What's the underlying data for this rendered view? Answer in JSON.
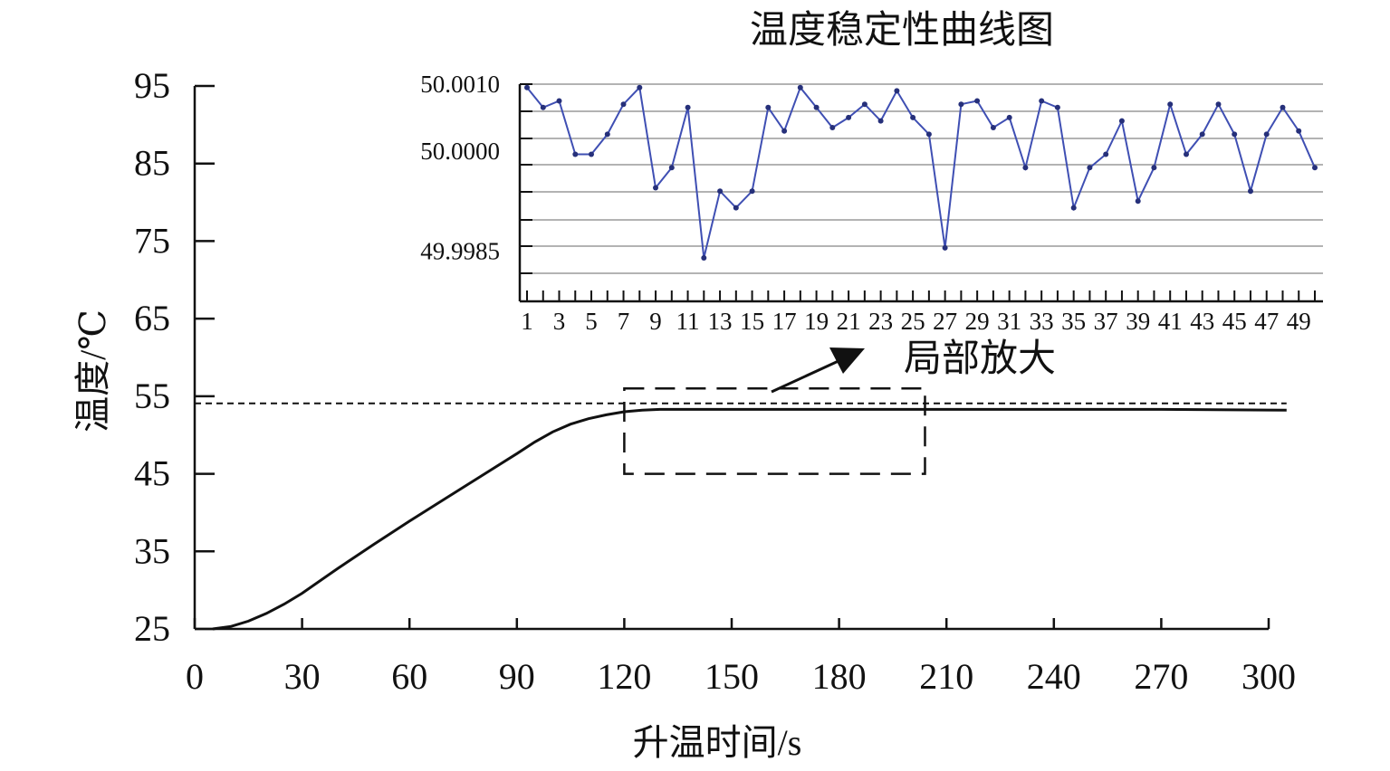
{
  "chart_data": [
    {
      "type": "line",
      "xlabel": "升温时间/s",
      "ylabel": "温度/℃",
      "xlim": [
        0,
        300
      ],
      "ylim": [
        25,
        95
      ],
      "x_ticks": [
        "0",
        "30",
        "60",
        "90",
        "120",
        "150",
        "180",
        "210",
        "240",
        "270",
        "300"
      ],
      "y_ticks": [
        "25",
        "35",
        "45",
        "55",
        "65",
        "75",
        "85",
        "95"
      ],
      "grid": false,
      "reference_line": {
        "y": 50,
        "style": "dashed"
      },
      "series": [
        {
          "x": [
            5,
            10,
            15,
            20,
            25,
            30,
            40,
            50,
            60,
            70,
            80,
            90,
            95,
            100,
            105,
            110,
            115,
            120,
            125,
            130,
            150,
            180,
            210,
            240,
            270,
            305
          ],
          "y": [
            25,
            25.3,
            26,
            27,
            28.2,
            29.6,
            32.8,
            35.9,
            38.9,
            41.8,
            44.7,
            47.6,
            49.1,
            50.4,
            51.4,
            52.1,
            52.6,
            53,
            53.2,
            53.3,
            53.3,
            53.3,
            53.3,
            53.3,
            53.3,
            53.2
          ]
        }
      ],
      "annotation": {
        "text": "局部放大",
        "x_range": [
          120,
          204
        ],
        "y_range": [
          45,
          56
        ]
      }
    },
    {
      "type": "line",
      "title": "温度稳定性曲线图",
      "grid": true,
      "y_tick_labels": [
        "50.0010",
        "50.0000",
        "49.9985"
      ],
      "y_tick_values": [
        50.001,
        50.0,
        49.9985
      ],
      "ylim": [
        49.99775,
        50.001
      ],
      "x_tick_labels": [
        "1",
        "3",
        "5",
        "7",
        "9",
        "11",
        "13",
        "15",
        "17",
        "19",
        "21",
        "23",
        "25",
        "27",
        "29",
        "31",
        "33",
        "35",
        "37",
        "39",
        "41",
        "43",
        "45",
        "47",
        "49"
      ],
      "line_color": "#3f4fb3",
      "series": [
        {
          "x": [
            1,
            2,
            3,
            4,
            5,
            6,
            7,
            8,
            9,
            10,
            11,
            12,
            13,
            14,
            15,
            16,
            17,
            18,
            19,
            20,
            21,
            22,
            23,
            24,
            25,
            26,
            27,
            28,
            29,
            30,
            31,
            32,
            33,
            34,
            35,
            36,
            37,
            38,
            39,
            40,
            41,
            42,
            43,
            44,
            45,
            46,
            47,
            48,
            49,
            50
          ],
          "y": [
            50.00095,
            50.00065,
            50.00075,
            49.99995,
            49.99995,
            50.00025,
            50.0007,
            50.00095,
            49.99945,
            49.99975,
            50.00065,
            49.9984,
            49.9994,
            49.99915,
            49.9994,
            50.00065,
            50.0003,
            50.00095,
            50.00065,
            50.00035,
            50.0005,
            50.0007,
            50.00045,
            50.0009,
            50.0005,
            50.00025,
            49.99855,
            50.0007,
            50.00075,
            50.00035,
            50.0005,
            49.99975,
            50.00075,
            50.00065,
            49.99915,
            49.99975,
            49.99995,
            50.00045,
            49.99925,
            49.99975,
            50.0007,
            49.99995,
            50.00025,
            50.0007,
            50.00025,
            49.9994,
            50.00025,
            50.00065,
            50.0003,
            49.99975
          ]
        }
      ]
    }
  ]
}
